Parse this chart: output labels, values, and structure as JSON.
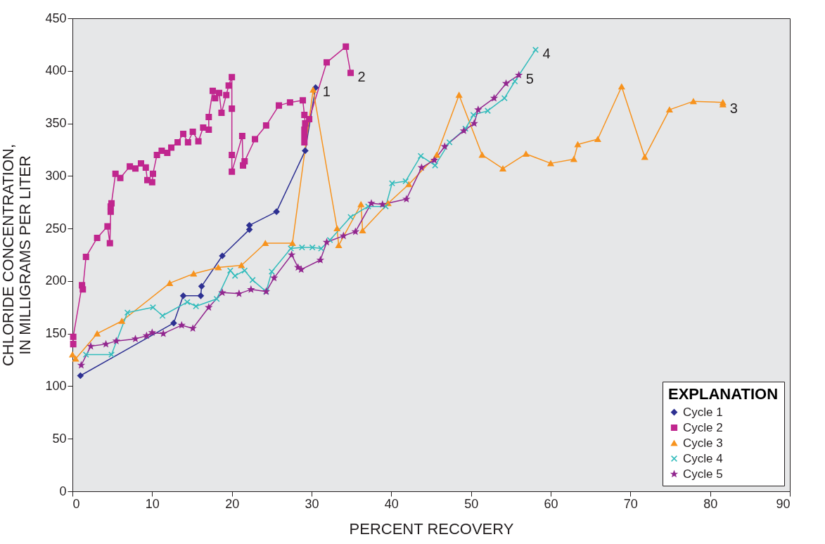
{
  "chart_data": {
    "type": "line",
    "xlabel": "PERCENT RECOVERY",
    "ylabel": "CHLORIDE CONCENTRATION,\nIN MILLIGRAMS PER LITER",
    "legend_title": "EXPLANATION",
    "legend": "bottom right",
    "grid": false,
    "xlim": [
      0,
      90
    ],
    "xticks": [
      0,
      10,
      20,
      30,
      40,
      50,
      60,
      70,
      80,
      90
    ],
    "ylim": [
      0,
      450
    ],
    "yticks": [
      0,
      50,
      100,
      150,
      200,
      250,
      300,
      350,
      400,
      450
    ],
    "series": [
      {
        "name": "Cycle 1",
        "color": "#2e3192",
        "marker": "diamond",
        "x": [
          1.0,
          12.7,
          13.9,
          16.1,
          16.2,
          18.8,
          22.2,
          22.2,
          25.6,
          29.2,
          30.5
        ],
        "values": [
          110,
          160,
          186,
          186,
          195,
          224,
          249,
          253,
          266,
          324,
          384
        ]
      },
      {
        "name": "Cycle 2",
        "color": "#c0268e",
        "marker": "square",
        "x": [
          0.1,
          0.1,
          1.2,
          1.3,
          1.7,
          3.1,
          4.4,
          4.7,
          4.8,
          4.8,
          4.9,
          5.4,
          6.0,
          7.2,
          7.9,
          8.6,
          9.2,
          9.4,
          10.0,
          10.1,
          10.6,
          11.2,
          11.9,
          12.4,
          13.2,
          13.9,
          14.5,
          15.1,
          15.8,
          16.4,
          17.1,
          17.1,
          17.6,
          17.9,
          18.4,
          18.7,
          19.3,
          19.6,
          20.0,
          20.0,
          20.0,
          20.0,
          21.3,
          21.4,
          21.6,
          22.9,
          24.3,
          25.9,
          27.3,
          28.9,
          29.1,
          29.2,
          29.1,
          29.1,
          29.1,
          29.7,
          31.9,
          34.3,
          34.9
        ],
        "values": [
          140,
          147,
          196,
          192,
          223,
          241,
          252,
          236,
          266,
          271,
          274,
          302,
          298,
          309,
          307,
          312,
          308,
          296,
          294,
          302,
          320,
          324,
          322,
          327,
          332,
          340,
          332,
          342,
          333,
          346,
          344,
          356,
          381,
          374,
          379,
          360,
          377,
          386,
          394,
          364,
          320,
          304,
          338,
          310,
          314,
          335,
          348,
          367,
          370,
          372,
          358,
          350,
          344,
          338,
          332,
          354,
          408,
          423,
          398
        ]
      },
      {
        "name": "Cycle 3",
        "color": "#f7931e",
        "marker": "triangle",
        "x": [
          0.0,
          0.4,
          3.1,
          6.2,
          12.2,
          15.2,
          18.3,
          21.2,
          24.2,
          27.6,
          30.2,
          33.2,
          33.4,
          36.2,
          36.4,
          39.6,
          42.2,
          45.7,
          48.5,
          51.4,
          54.0,
          56.9,
          60.0,
          62.9,
          63.4,
          65.9,
          68.9,
          71.8,
          74.9,
          77.9,
          81.6,
          81.6
        ],
        "values": [
          130,
          126,
          150,
          162,
          198,
          207,
          213,
          215,
          236,
          236,
          382,
          250,
          234,
          273,
          248,
          274,
          292,
          320,
          377,
          320,
          307,
          321,
          312,
          316,
          330,
          335,
          385,
          318,
          363,
          371,
          370,
          368
        ]
      },
      {
        "name": "Cycle 4",
        "color": "#33bcbc",
        "marker": "cross",
        "x": [
          1.7,
          4.9,
          6.9,
          10.1,
          11.3,
          14.4,
          15.5,
          18.1,
          19.8,
          20.4,
          21.6,
          22.6,
          24.3,
          25.0,
          27.4,
          28.8,
          30.1,
          31.2,
          32.3,
          34.9,
          37.1,
          39.3,
          40.1,
          41.8,
          43.7,
          45.5,
          47.3,
          49.3,
          50.3,
          52.1,
          54.2,
          55.5,
          58.1
        ],
        "values": [
          130,
          130,
          170,
          175,
          167,
          180,
          176,
          183,
          210,
          205,
          210,
          201,
          190,
          209,
          231,
          232,
          232,
          231,
          239,
          261,
          271,
          271,
          293,
          295,
          319,
          310,
          332,
          345,
          358,
          362,
          374,
          390,
          420
        ]
      },
      {
        "name": "Cycle 5",
        "color": "#92278f",
        "marker": "star",
        "x": [
          1.1,
          2.3,
          4.2,
          5.5,
          7.9,
          9.3,
          10.0,
          11.4,
          13.7,
          15.1,
          17.1,
          18.8,
          20.9,
          22.4,
          24.3,
          25.3,
          27.5,
          28.3,
          28.7,
          31.1,
          31.9,
          34.0,
          35.5,
          37.5,
          38.9,
          41.9,
          43.8,
          45.4,
          46.7,
          49.1,
          50.4,
          50.9,
          52.9,
          54.4,
          56.0
        ],
        "values": [
          120,
          138,
          140,
          143,
          145,
          148,
          151,
          150,
          158,
          155,
          175,
          189,
          188,
          192,
          190,
          203,
          225,
          213,
          211,
          220,
          237,
          243,
          247,
          274,
          273,
          278,
          308,
          315,
          328,
          343,
          350,
          363,
          374,
          388,
          396
        ]
      }
    ],
    "annotations": [
      "1",
      "2",
      "3",
      "4",
      "5"
    ]
  }
}
